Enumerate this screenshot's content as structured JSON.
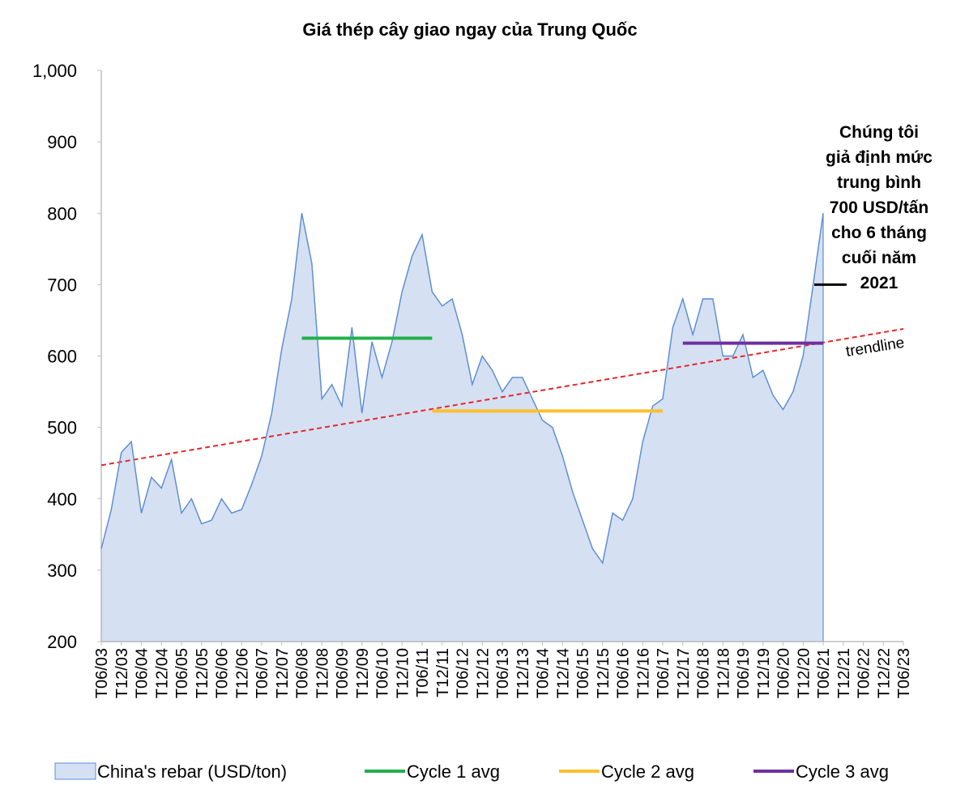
{
  "chart_data": {
    "type": "area",
    "title": "Giá thép cây giao ngay của Trung Quốc",
    "categories": [
      "T06/03",
      null,
      "T12/03",
      null,
      "T06/04",
      null,
      "T12/04",
      null,
      "T06/05",
      null,
      "T12/05",
      null,
      "T06/06",
      null,
      "T12/06",
      null,
      "T06/07",
      null,
      "T12/07",
      null,
      "T06/08",
      null,
      "T12/08",
      null,
      "T06/09",
      null,
      "T12/09",
      null,
      "T06/10",
      null,
      "T12/10",
      null,
      "T06/11",
      null,
      "T12/11",
      null,
      "T06/12",
      null,
      "T12/12",
      null,
      "T06/13",
      null,
      "T12/13",
      null,
      "T06/14",
      null,
      "T12/14",
      null,
      "T06/15",
      null,
      "T12/15",
      null,
      "T06/16",
      null,
      "T12/16",
      null,
      "T06/17",
      null,
      "T12/17",
      null,
      "T06/18",
      null,
      "T12/18",
      null,
      "T06/19",
      null,
      "T12/19",
      null,
      "T06/20",
      null,
      "T12/20",
      null,
      "T06/21",
      null,
      "T12/21",
      null,
      "T06/22",
      null,
      "T12/22",
      null,
      "T06/23"
    ],
    "series": [
      {
        "name": "China's rebar (USD/ton)",
        "color": "#5b8fd4",
        "fill": "#d6e0f3",
        "type": "area",
        "values": [
          330,
          385,
          465,
          480,
          380,
          430,
          415,
          455,
          380,
          400,
          365,
          370,
          400,
          380,
          385,
          420,
          460,
          520,
          610,
          680,
          800,
          730,
          540,
          560,
          530,
          640,
          520,
          620,
          570,
          620,
          690,
          740,
          770,
          690,
          670,
          680,
          630,
          560,
          600,
          580,
          550,
          570,
          570,
          540,
          510,
          500,
          460,
          410,
          370,
          330,
          310,
          380,
          370,
          400,
          480,
          530,
          540,
          640,
          680,
          630,
          680,
          680,
          600,
          600,
          630,
          570,
          580,
          545,
          525,
          550,
          600,
          700,
          800,
          null,
          null,
          null,
          null,
          null,
          null,
          null,
          null
        ]
      },
      {
        "name": "Cycle 1 avg",
        "color": "#22b04b",
        "type": "line",
        "values": [
          null,
          null,
          null,
          null,
          null,
          null,
          null,
          null,
          null,
          null,
          null,
          null,
          null,
          null,
          null,
          null,
          null,
          null,
          null,
          null,
          625,
          625,
          625,
          625,
          625,
          625,
          625,
          625,
          625,
          625,
          625,
          625,
          625,
          625,
          null,
          null,
          null,
          null,
          null,
          null,
          null,
          null,
          null,
          null,
          null,
          null,
          null,
          null,
          null,
          null,
          null,
          null,
          null,
          null,
          null,
          null,
          null,
          null,
          null,
          null,
          null,
          null,
          null,
          null,
          null,
          null,
          null,
          null,
          null,
          null,
          null,
          null,
          null,
          null,
          null,
          null,
          null,
          null,
          null,
          null,
          null
        ]
      },
      {
        "name": "Cycle 2 avg",
        "color": "#fbc02d",
        "type": "line",
        "values": [
          null,
          null,
          null,
          null,
          null,
          null,
          null,
          null,
          null,
          null,
          null,
          null,
          null,
          null,
          null,
          null,
          null,
          null,
          null,
          null,
          null,
          null,
          null,
          null,
          null,
          null,
          null,
          null,
          null,
          null,
          null,
          null,
          null,
          523,
          523,
          523,
          523,
          523,
          523,
          523,
          523,
          523,
          523,
          523,
          523,
          523,
          523,
          523,
          523,
          523,
          523,
          523,
          523,
          523,
          523,
          523,
          523,
          null,
          null,
          null,
          null,
          null,
          null,
          null,
          null,
          null,
          null,
          null,
          null,
          null,
          null,
          null,
          null,
          null,
          null,
          null,
          null,
          null,
          null,
          null,
          null
        ]
      },
      {
        "name": "Cycle 3 avg",
        "color": "#7030a0",
        "type": "line",
        "values": [
          null,
          null,
          null,
          null,
          null,
          null,
          null,
          null,
          null,
          null,
          null,
          null,
          null,
          null,
          null,
          null,
          null,
          null,
          null,
          null,
          null,
          null,
          null,
          null,
          null,
          null,
          null,
          null,
          null,
          null,
          null,
          null,
          null,
          null,
          null,
          null,
          null,
          null,
          null,
          null,
          null,
          null,
          null,
          null,
          null,
          null,
          null,
          null,
          null,
          null,
          null,
          null,
          null,
          null,
          null,
          null,
          null,
          null,
          618,
          618,
          618,
          618,
          618,
          618,
          618,
          618,
          618,
          618,
          618,
          618,
          618,
          618,
          618,
          null,
          null,
          null,
          null,
          null,
          null,
          null,
          null
        ]
      }
    ],
    "trendline": {
      "label": "trendline",
      "color": "#e8262a",
      "values": [
        447,
        638
      ]
    },
    "annotation": {
      "lines": [
        "Chúng tôi",
        "giả định mức",
        "trung bình",
        "700 USD/tấn",
        "cho 6 tháng",
        "cuối năm",
        "2021"
      ],
      "value": 700
    },
    "ylim": [
      200,
      1000
    ],
    "yticks": [
      200,
      300,
      400,
      500,
      600,
      700,
      800,
      900,
      {
        "value": 1000,
        "label": "1,000"
      }
    ],
    "grid": false
  }
}
